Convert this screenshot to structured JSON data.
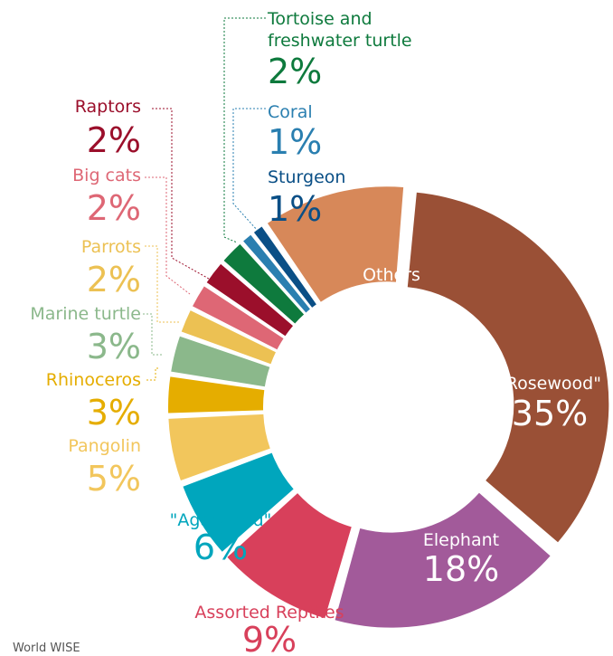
{
  "chart_data": {
    "type": "pie",
    "variant": "exploded donut",
    "slices": [
      {
        "label": "\"Rosewood\"",
        "pct_label": "35%",
        "value": 35,
        "color": "#9a5036"
      },
      {
        "label": "Elephant",
        "pct_label": "18%",
        "value": 18,
        "color": "#a25a9a"
      },
      {
        "label": "Assorted Reptiles",
        "pct_label": "9%",
        "value": 9,
        "color": "#d8405b"
      },
      {
        "label": "\"Agarwood\"",
        "pct_label": "6%",
        "value": 6,
        "color": "#00a6bd"
      },
      {
        "label": "Pangolin",
        "pct_label": "5%",
        "value": 5,
        "color": "#f2c65c"
      },
      {
        "label": "Rhinoceros",
        "pct_label": "3%",
        "value": 3,
        "color": "#e5ad00"
      },
      {
        "label": "Marine turtle",
        "pct_label": "3%",
        "value": 3,
        "color": "#8bb88b"
      },
      {
        "label": "Parrots",
        "pct_label": "2%",
        "value": 2,
        "color": "#ecc153"
      },
      {
        "label": "Big cats",
        "pct_label": "2%",
        "value": 2,
        "color": "#de6775"
      },
      {
        "label": "Raptors",
        "pct_label": "2%",
        "value": 2,
        "color": "#9b0f2b"
      },
      {
        "label": "Tortoise and freshwater turtle",
        "label_lines": [
          "Tortoise and",
          "freshwater turtle"
        ],
        "pct_label": "2%",
        "value": 2,
        "color": "#0e7a3d"
      },
      {
        "label": "Coral",
        "pct_label": "1%",
        "value": 1,
        "color": "#2a7fb0"
      },
      {
        "label": "Sturgeon",
        "pct_label": "1%",
        "value": 1,
        "color": "#0a4f86"
      },
      {
        "label": "Others",
        "pct_label": "11%",
        "value": 11,
        "color": "#d78859"
      }
    ]
  },
  "footer": {
    "source": "World WISE"
  }
}
